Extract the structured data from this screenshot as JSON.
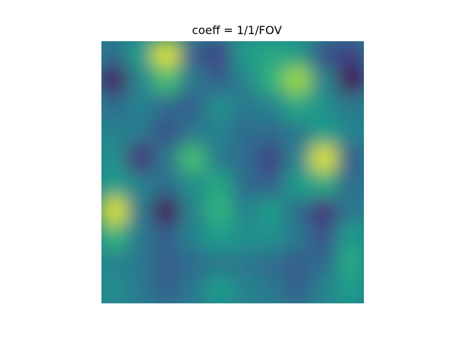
{
  "chart_data": {
    "type": "heatmap",
    "title": "coeff = 1/1/FOV",
    "xlabel": "",
    "ylabel": "",
    "axes_visible": false,
    "colormap": "viridis",
    "colormap_stops": [
      "#440154",
      "#482878",
      "#3e4989",
      "#31688e",
      "#26828e",
      "#1f9e89",
      "#35b779",
      "#6ece58",
      "#b5de2b",
      "#fde725"
    ],
    "grid_rows": 10,
    "grid_cols": 10,
    "values": [
      [
        0.35,
        0.55,
        0.95,
        0.3,
        0.2,
        0.55,
        0.6,
        0.55,
        0.25,
        0.2
      ],
      [
        0.05,
        0.45,
        0.7,
        0.4,
        0.3,
        0.45,
        0.65,
        0.85,
        0.45,
        0.02
      ],
      [
        0.35,
        0.45,
        0.35,
        0.3,
        0.5,
        0.4,
        0.45,
        0.6,
        0.5,
        0.4
      ],
      [
        0.45,
        0.4,
        0.25,
        0.4,
        0.45,
        0.35,
        0.35,
        0.4,
        0.55,
        0.45
      ],
      [
        0.5,
        0.12,
        0.4,
        0.7,
        0.4,
        0.35,
        0.2,
        0.45,
        0.95,
        0.3
      ],
      [
        0.55,
        0.45,
        0.35,
        0.5,
        0.6,
        0.35,
        0.3,
        0.55,
        0.6,
        0.35
      ],
      [
        0.95,
        0.4,
        0.02,
        0.45,
        0.65,
        0.45,
        0.55,
        0.35,
        0.15,
        0.4
      ],
      [
        0.65,
        0.4,
        0.3,
        0.45,
        0.55,
        0.5,
        0.5,
        0.4,
        0.25,
        0.55
      ],
      [
        0.45,
        0.4,
        0.3,
        0.35,
        0.4,
        0.4,
        0.35,
        0.3,
        0.35,
        0.6
      ],
      [
        0.5,
        0.4,
        0.3,
        0.4,
        0.55,
        0.45,
        0.4,
        0.3,
        0.45,
        0.55
      ]
    ]
  }
}
